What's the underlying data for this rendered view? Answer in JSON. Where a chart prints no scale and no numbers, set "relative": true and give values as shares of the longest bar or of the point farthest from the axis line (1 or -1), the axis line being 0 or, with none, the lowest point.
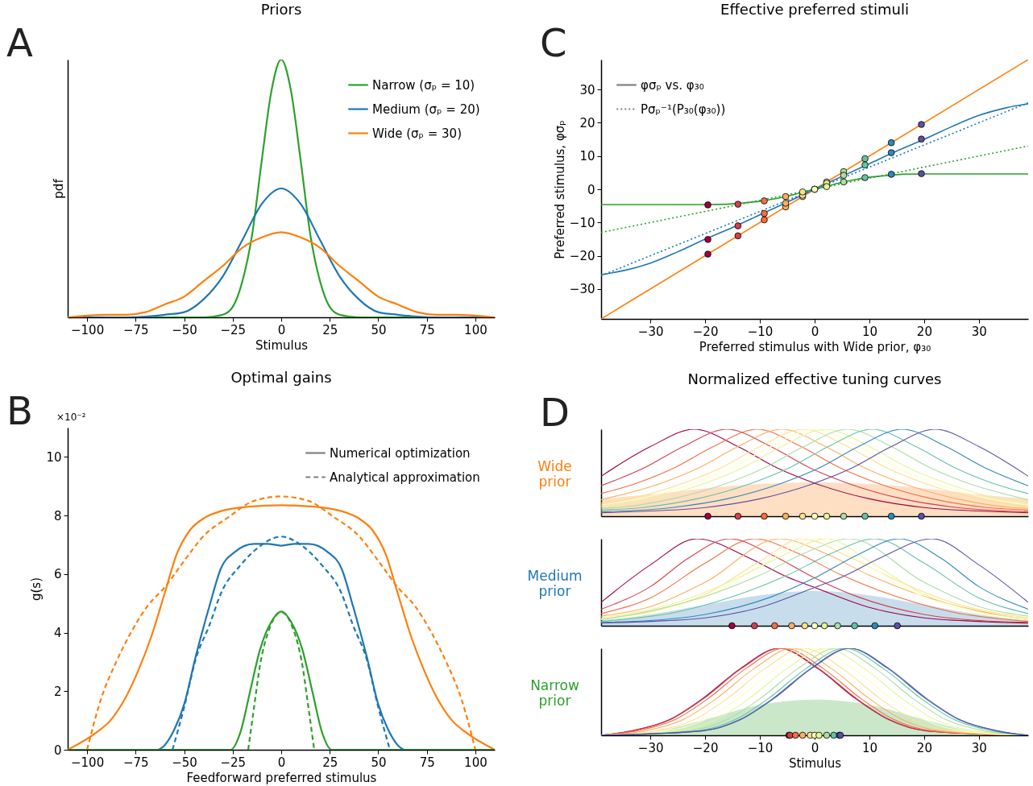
{
  "chart_data": [
    {
      "type": "line",
      "title": "Priors",
      "xlabel": "Stimulus",
      "ylabel": "pdf",
      "relative": true,
      "xlim": [
        -110,
        110
      ],
      "xticks": [
        -100,
        -75,
        -50,
        -25,
        0,
        25,
        50,
        75,
        100
      ],
      "legend": "top right",
      "grid": false,
      "annotations": [
        "A"
      ],
      "series": [
        {
          "name": "Narrow (σₚ = 10)",
          "color": "#2ca02c",
          "x": [
            -110,
            -40,
            -30,
            -25,
            -20,
            -15,
            -10,
            -5,
            0,
            5,
            10,
            15,
            20,
            25,
            30,
            40,
            110
          ],
          "values": [
            0,
            0,
            0.01,
            0.04,
            0.14,
            0.32,
            0.61,
            0.88,
            1,
            0.88,
            0.61,
            0.32,
            0.14,
            0.04,
            0.01,
            0,
            0
          ]
        },
        {
          "name": "Medium (σₚ = 20)",
          "color": "#1f77b4",
          "x": [
            -110,
            -80,
            -60,
            -50,
            -40,
            -30,
            -20,
            -10,
            0,
            10,
            20,
            30,
            40,
            50,
            60,
            80,
            110
          ],
          "values": [
            0,
            0,
            0.01,
            0.02,
            0.07,
            0.16,
            0.3,
            0.44,
            0.5,
            0.44,
            0.3,
            0.16,
            0.07,
            0.02,
            0.01,
            0,
            0
          ]
        },
        {
          "name": "Wide (σₚ = 30)",
          "color": "#ff7f0e",
          "x": [
            -110,
            -90,
            -80,
            -70,
            -60,
            -50,
            -40,
            -30,
            -20,
            -10,
            0,
            10,
            20,
            30,
            40,
            50,
            60,
            70,
            80,
            90,
            110
          ],
          "values": [
            0,
            0.01,
            0.01,
            0.02,
            0.05,
            0.08,
            0.14,
            0.2,
            0.27,
            0.31,
            0.33,
            0.31,
            0.27,
            0.2,
            0.14,
            0.08,
            0.05,
            0.02,
            0.01,
            0.01,
            0
          ]
        }
      ]
    },
    {
      "type": "line",
      "title": "Optimal gains",
      "xlabel": "Feedforward preferred stimulus",
      "ylabel": "g(s)",
      "xlim": [
        -110,
        110
      ],
      "xticks": [
        -100,
        -75,
        -50,
        -25,
        0,
        25,
        50,
        75,
        100
      ],
      "ylim": [
        0,
        11
      ],
      "yticks": [
        0,
        2,
        4,
        6,
        8,
        10
      ],
      "legend": "top right",
      "grid": false,
      "annotations": [
        "B",
        "×10⁻²",
        "Numerical optimization",
        "Analytical approximation"
      ],
      "series": [
        {
          "color": "#ff7f0e",
          "line_style": "solid",
          "x": [
            -110,
            -95,
            -88,
            -80,
            -74,
            -67,
            -60,
            -54,
            -47,
            -40,
            -31,
            -17,
            0,
            17,
            31,
            40,
            47,
            54,
            60,
            67,
            74,
            80,
            88,
            95,
            110
          ],
          "values": [
            0,
            0.6,
            1,
            1.8,
            2.65,
            3.85,
            5.35,
            6.65,
            7.5,
            7.9,
            8.15,
            8.3,
            8.35,
            8.3,
            8.15,
            7.9,
            7.5,
            6.65,
            5.35,
            3.85,
            2.65,
            1.8,
            1,
            0.6,
            0
          ]
        },
        {
          "color": "#ff7f0e",
          "line_style": "dashed",
          "x": [
            -100,
            -93,
            -85,
            -77,
            -69,
            -60,
            -50,
            -40,
            -27,
            -14,
            0,
            14,
            27,
            40,
            50,
            60,
            69,
            77,
            85,
            93,
            100
          ],
          "values": [
            0,
            1.7,
            3,
            4.05,
            4.9,
            5.55,
            6.45,
            7.3,
            7.95,
            8.5,
            8.65,
            8.5,
            7.95,
            7.3,
            6.45,
            5.55,
            4.9,
            4.05,
            3,
            1.7,
            0
          ]
        },
        {
          "color": "#1f77b4",
          "line_style": "solid",
          "x": [
            -110,
            -64,
            -60,
            -55,
            -50,
            -44,
            -37,
            -31,
            -24,
            -14,
            -7,
            0,
            7,
            14,
            24,
            31,
            37,
            44,
            50,
            55,
            60,
            64,
            110
          ],
          "values": [
            0,
            0,
            0.16,
            0.7,
            1.55,
            3.2,
            4.9,
            6.2,
            6.75,
            7.03,
            7.03,
            6.97,
            7.03,
            7.03,
            6.75,
            6.2,
            4.9,
            3.2,
            1.55,
            0.7,
            0.16,
            0,
            0
          ]
        },
        {
          "color": "#1f77b4",
          "line_style": "dashed",
          "x": [
            -56,
            -50,
            -44,
            -37,
            -31,
            -21,
            -11,
            0,
            11,
            21,
            31,
            37,
            44,
            50,
            56
          ],
          "values": [
            0,
            1.45,
            3.1,
            4.25,
            5.35,
            6.3,
            6.95,
            7.28,
            6.95,
            6.3,
            5.35,
            4.25,
            3.1,
            1.45,
            0
          ]
        },
        {
          "color": "#2ca02c",
          "line_style": "solid",
          "x": [
            -110,
            -26,
            -21,
            -16,
            -11,
            -5,
            0,
            5,
            11,
            16,
            21,
            26,
            110
          ],
          "values": [
            0,
            0,
            0.6,
            2,
            3.4,
            4.38,
            4.72,
            4.38,
            3.4,
            2,
            0.6,
            0,
            0
          ]
        },
        {
          "color": "#2ca02c",
          "line_style": "dashed",
          "x": [
            -17,
            -14,
            -11,
            -6,
            0,
            6,
            11,
            14,
            17
          ],
          "values": [
            0,
            1.45,
            2.85,
            4.15,
            4.7,
            4.15,
            2.85,
            1.45,
            0
          ]
        }
      ]
    },
    {
      "type": "line",
      "title": "Effective preferred stimuli",
      "xlabel": "Preferred stimulus with Wide prior, φ₃₀",
      "ylabel": "Preferred stimulus, φσₚ",
      "xlim": [
        -39,
        39
      ],
      "xticks": [
        -30,
        -20,
        -10,
        0,
        10,
        20,
        30
      ],
      "ylim": [
        -39,
        39
      ],
      "yticks": [
        -30,
        -20,
        -10,
        0,
        10,
        20,
        30
      ],
      "legend": "top left",
      "grid": false,
      "annotations": [
        "C",
        "φσₚ vs. φ₃₀",
        "Pσₚ⁻¹(P₃₀(φ₃₀))"
      ],
      "series": [
        {
          "color": "#ff7f0e",
          "line_style": "solid",
          "x": [
            -39,
            39
          ],
          "values": [
            -39,
            39
          ]
        },
        {
          "color": "#1f77b4",
          "line_style": "solid",
          "x": [
            -39,
            -35,
            -30,
            -25,
            -20,
            -15,
            -10,
            -5,
            0,
            5,
            10,
            15,
            20,
            25,
            30,
            35,
            39
          ],
          "values": [
            -25.7,
            -24.5,
            -22.2,
            -18.8,
            -15,
            -11.5,
            -7.7,
            -3.9,
            0,
            3.9,
            7.7,
            11.5,
            15,
            18.8,
            22.2,
            24.5,
            25.7
          ]
        },
        {
          "color": "#2ca02c",
          "line_style": "solid",
          "x": [
            -39,
            -20,
            -16,
            -13,
            -10,
            -7,
            -4,
            -2,
            0,
            2,
            4,
            7,
            10,
            13,
            16,
            20,
            39
          ],
          "values": [
            -4.6,
            -4.6,
            -4.5,
            -4.1,
            -3.6,
            -2.8,
            -1.7,
            -0.8,
            0,
            0.8,
            1.7,
            2.8,
            3.6,
            4.1,
            4.5,
            4.6,
            4.6
          ]
        },
        {
          "color": "#1f77b4",
          "line_style": "dotted",
          "x": [
            -39,
            39
          ],
          "values": [
            -26,
            26
          ]
        },
        {
          "color": "#2ca02c",
          "line_style": "dotted",
          "x": [
            -39,
            39
          ],
          "values": [
            -13,
            13
          ]
        },
        {
          "type": "scatter",
          "marker": "circle",
          "x": [
            -19.5,
            -14,
            -9.2,
            -5.3,
            -2.2,
            0,
            2.2,
            5.3,
            9.2,
            14,
            19.5
          ],
          "values": [
            -19.5,
            -14,
            -9.2,
            -5.3,
            -2.2,
            0,
            2.2,
            5.3,
            9.2,
            14,
            19.5
          ],
          "colors": [
            "#9e0142",
            "#d53e4f",
            "#f46d43",
            "#fdae61",
            "#fee08b",
            "#ffffbf",
            "#e6f598",
            "#abdda4",
            "#66c2a5",
            "#3288bd",
            "#5e4fa2"
          ]
        },
        {
          "type": "scatter",
          "marker": "circle",
          "x": [
            -19.5,
            -14,
            -9.2,
            -5.3,
            -2.2,
            0,
            2.2,
            5.3,
            9.2,
            14,
            19.5
          ],
          "values": [
            -15.1,
            -11,
            -7.3,
            -4.2,
            -1.8,
            0,
            1.8,
            4.2,
            7.3,
            11,
            15.1
          ],
          "colors": [
            "#9e0142",
            "#d53e4f",
            "#f46d43",
            "#fdae61",
            "#fee08b",
            "#ffffbf",
            "#e6f598",
            "#abdda4",
            "#66c2a5",
            "#3288bd",
            "#5e4fa2"
          ]
        },
        {
          "type": "scatter",
          "marker": "circle",
          "x": [
            -19.5,
            -14,
            -9.2,
            -5.3,
            -2.2,
            0,
            2.2,
            5.3,
            9.2,
            14,
            19.5
          ],
          "values": [
            -4.7,
            -4.5,
            -3.5,
            -2.2,
            -0.8,
            0,
            0.8,
            2.2,
            3.5,
            4.5,
            4.7
          ],
          "colors": [
            "#9e0142",
            "#d53e4f",
            "#f46d43",
            "#fdae61",
            "#fee08b",
            "#ffffbf",
            "#e6f598",
            "#abdda4",
            "#66c2a5",
            "#3288bd",
            "#5e4fa2"
          ]
        }
      ]
    },
    {
      "type": "line",
      "title": "Normalized effective tuning curves",
      "ylabel": "Wide prior",
      "relative": true,
      "xlim": [
        -39,
        39
      ],
      "xticks": [
        -30,
        -20,
        -10,
        0,
        10,
        20,
        30
      ],
      "tick_labels": false,
      "grid": false,
      "annotations": [
        "D"
      ],
      "series": [
        {
          "type": "area",
          "color": "#ff7f0e",
          "x": [
            -39,
            -30,
            -20,
            -10,
            0,
            10,
            20,
            30,
            39
          ],
          "values": [
            0.2,
            0.25,
            0.32,
            0.37,
            0.39,
            0.37,
            0.32,
            0.25,
            0.2
          ]
        },
        {
          "color": "#9e0142",
          "x": [
            -39,
            -30,
            -22,
            -14,
            -7,
            0,
            10,
            20,
            30,
            39
          ],
          "values": [
            0.46,
            0.8,
            1,
            0.8,
            0.56,
            0.38,
            0.2,
            0.1,
            0.06,
            0.04
          ]
        },
        {
          "color": "#d53e4f",
          "x": [
            -39,
            -31,
            -24,
            -16,
            -8,
            -1,
            6,
            16,
            26,
            39
          ],
          "values": [
            0.35,
            0.56,
            0.8,
            1,
            0.8,
            0.56,
            0.38,
            0.2,
            0.1,
            0.05
          ]
        },
        {
          "color": "#f46d43",
          "x": [
            -39,
            -32.5,
            -25.5,
            -18.5,
            -10.5,
            -2.5,
            4.5,
            11.5,
            21.5,
            31.5,
            39
          ],
          "values": [
            0.26,
            0.38,
            0.56,
            0.8,
            1,
            0.8,
            0.56,
            0.38,
            0.2,
            0.1,
            0.07
          ]
        },
        {
          "color": "#fdae61",
          "x": [
            -39,
            -28,
            -21,
            -14,
            -6,
            2,
            9,
            16,
            26,
            36,
            39
          ],
          "values": [
            0.19,
            0.38,
            0.56,
            0.8,
            1,
            0.8,
            0.56,
            0.38,
            0.2,
            0.1,
            0.09
          ]
        },
        {
          "color": "#fee08b",
          "x": [
            -39,
            -34,
            -24,
            -17,
            -10,
            -2,
            6,
            13,
            20,
            30,
            39
          ],
          "values": [
            0.15,
            0.2,
            0.38,
            0.56,
            0.8,
            1,
            0.8,
            0.56,
            0.38,
            0.2,
            0.11
          ]
        },
        {
          "color": "#ffffbf",
          "x": [
            -39,
            -32,
            -22,
            -15,
            -8,
            0,
            8,
            15,
            22,
            32,
            39
          ],
          "values": [
            0.13,
            0.2,
            0.38,
            0.56,
            0.8,
            1,
            0.8,
            0.56,
            0.38,
            0.2,
            0.13
          ]
        },
        {
          "color": "#e6f598",
          "x": [
            -39,
            -30,
            -20,
            -13,
            -6,
            2,
            10,
            17,
            24,
            34,
            39
          ],
          "values": [
            0.11,
            0.2,
            0.38,
            0.56,
            0.8,
            1,
            0.8,
            0.56,
            0.38,
            0.2,
            0.15
          ]
        },
        {
          "color": "#abdda4",
          "x": [
            -39,
            -36,
            -26,
            -16,
            -9,
            -2,
            6,
            14,
            21,
            28,
            39
          ],
          "values": [
            0.09,
            0.1,
            0.2,
            0.38,
            0.56,
            0.8,
            1,
            0.8,
            0.56,
            0.38,
            0.19
          ]
        },
        {
          "color": "#66c2a5",
          "x": [
            -39,
            -31.5,
            -21.5,
            -11.5,
            -4.5,
            2.5,
            10.5,
            18.5,
            25.5,
            32.5,
            39
          ],
          "values": [
            0.07,
            0.1,
            0.2,
            0.38,
            0.56,
            0.8,
            1,
            0.8,
            0.56,
            0.38,
            0.26
          ]
        },
        {
          "color": "#3288bd",
          "x": [
            -39,
            -26,
            -16,
            -6,
            1,
            8,
            16,
            24,
            31,
            39
          ],
          "values": [
            0.05,
            0.1,
            0.2,
            0.38,
            0.56,
            0.8,
            1,
            0.8,
            0.56,
            0.35
          ]
        },
        {
          "color": "#5e4fa2",
          "x": [
            -39,
            -30,
            -20,
            -10,
            0,
            7,
            14,
            22,
            30,
            39
          ],
          "values": [
            0.04,
            0.06,
            0.1,
            0.2,
            0.38,
            0.56,
            0.8,
            1,
            0.8,
            0.46
          ]
        },
        {
          "type": "scatter",
          "marker": "circle",
          "x": [
            -19.5,
            -14,
            -9.2,
            -5.3,
            -2.2,
            0,
            2.2,
            5.3,
            9.2,
            14,
            19.5
          ],
          "values": [
            0,
            0,
            0,
            0,
            0,
            0,
            0,
            0,
            0,
            0,
            0
          ],
          "colors": [
            "#9e0142",
            "#d53e4f",
            "#f46d43",
            "#fdae61",
            "#fee08b",
            "#ffffbf",
            "#e6f598",
            "#abdda4",
            "#66c2a5",
            "#3288bd",
            "#5e4fa2"
          ]
        }
      ]
    },
    {
      "type": "line",
      "ylabel": "Medium prior",
      "relative": true,
      "xlim": [
        -39,
        39
      ],
      "xticks": [
        -30,
        -20,
        -10,
        0,
        10,
        20,
        30
      ],
      "tick_labels": false,
      "grid": false,
      "series": [
        {
          "type": "area",
          "color": "#1f77b4",
          "x": [
            -39,
            -30,
            -20,
            -10,
            0,
            10,
            20,
            30,
            39
          ],
          "values": [
            0.06,
            0.13,
            0.24,
            0.35,
            0.4,
            0.35,
            0.24,
            0.13,
            0.06
          ]
        },
        {
          "color": "#9e0142",
          "x": [
            -39,
            -30,
            -21.5,
            -12,
            -5,
            0,
            10,
            20,
            30,
            39
          ],
          "values": [
            0.27,
            0.7,
            1,
            0.78,
            0.56,
            0.44,
            0.21,
            0.09,
            0.05,
            0.03
          ]
        },
        {
          "color": "#d53e4f",
          "x": [
            -39,
            -30,
            -23,
            -15.5,
            -8,
            0,
            8,
            20,
            30,
            39
          ],
          "values": [
            0.19,
            0.45,
            0.78,
            1,
            0.82,
            0.55,
            0.33,
            0.13,
            0.06,
            0.04
          ]
        },
        {
          "color": "#f46d43",
          "x": [
            -39,
            -30,
            -20,
            -11,
            -3,
            5,
            12,
            25,
            39
          ],
          "values": [
            0.14,
            0.32,
            0.72,
            1,
            0.83,
            0.58,
            0.4,
            0.16,
            0.05
          ]
        },
        {
          "color": "#fdae61",
          "x": [
            -39,
            -30,
            -20,
            -6.4,
            2,
            10,
            18,
            30,
            39
          ],
          "values": [
            0.11,
            0.22,
            0.5,
            1,
            0.83,
            0.58,
            0.38,
            0.17,
            0.07
          ]
        },
        {
          "color": "#fee08b",
          "x": [
            -39,
            -30,
            -20,
            -10,
            -2.3,
            6,
            14,
            25,
            39
          ],
          "values": [
            0.08,
            0.16,
            0.36,
            0.74,
            1,
            0.8,
            0.55,
            0.27,
            0.09
          ]
        },
        {
          "color": "#ffffbf",
          "x": [
            -39,
            -30,
            -20,
            -10,
            0,
            10,
            20,
            30,
            39
          ],
          "values": [
            0.07,
            0.14,
            0.33,
            0.68,
            1,
            0.68,
            0.33,
            0.14,
            0.07
          ]
        },
        {
          "color": "#e6f598",
          "x": [
            -39,
            -25,
            -14,
            -6,
            2.3,
            10,
            20,
            30,
            39
          ],
          "values": [
            0.09,
            0.27,
            0.55,
            0.8,
            1,
            0.74,
            0.36,
            0.16,
            0.08
          ]
        },
        {
          "color": "#abdda4",
          "x": [
            -39,
            -30,
            -18,
            -10,
            -2,
            6.4,
            20,
            30,
            39
          ],
          "values": [
            0.07,
            0.17,
            0.38,
            0.58,
            0.83,
            1,
            0.5,
            0.22,
            0.11
          ]
        },
        {
          "color": "#66c2a5",
          "x": [
            -39,
            -25,
            -12,
            -5,
            3,
            11,
            20,
            30,
            39
          ],
          "values": [
            0.05,
            0.16,
            0.4,
            0.58,
            0.83,
            1,
            0.72,
            0.32,
            0.14
          ]
        },
        {
          "color": "#3288bd",
          "x": [
            -39,
            -30,
            -20,
            -8,
            0,
            8,
            15.5,
            23,
            30,
            39
          ],
          "values": [
            0.04,
            0.06,
            0.13,
            0.33,
            0.55,
            0.82,
            1,
            0.78,
            0.45,
            0.19
          ]
        },
        {
          "color": "#5e4fa2",
          "x": [
            -39,
            -30,
            -20,
            -10,
            0,
            5,
            12,
            21.5,
            30,
            39
          ],
          "values": [
            0.03,
            0.05,
            0.09,
            0.21,
            0.44,
            0.56,
            0.78,
            1,
            0.7,
            0.27
          ]
        },
        {
          "type": "scatter",
          "marker": "circle",
          "x": [
            -15.1,
            -11,
            -7.3,
            -4.2,
            -1.8,
            0,
            1.8,
            4.2,
            7.3,
            11,
            15.1
          ],
          "values": [
            0,
            0,
            0,
            0,
            0,
            0,
            0,
            0,
            0,
            0,
            0
          ],
          "colors": [
            "#9e0142",
            "#d53e4f",
            "#f46d43",
            "#fdae61",
            "#fee08b",
            "#ffffbf",
            "#e6f598",
            "#abdda4",
            "#66c2a5",
            "#3288bd",
            "#5e4fa2"
          ]
        }
      ]
    },
    {
      "type": "line",
      "ylabel": "Narrow prior",
      "xlabel": "Stimulus",
      "relative": true,
      "xlim": [
        -39,
        39
      ],
      "xticks": [
        -30,
        -20,
        -10,
        0,
        10,
        20,
        30
      ],
      "tick_labels": "x",
      "grid": false,
      "series": [
        {
          "type": "area",
          "color": "#2ca02c",
          "x": [
            -39,
            -30,
            -20,
            -10,
            0,
            10,
            20,
            30,
            39
          ],
          "values": [
            0,
            0.03,
            0.18,
            0.35,
            0.41,
            0.35,
            0.18,
            0.03,
            0
          ]
        },
        {
          "color": "#9e0142",
          "x": [
            -39,
            -33.5,
            -26.5,
            -20.5,
            -13.5,
            -6.5,
            0.5,
            7.5,
            13.5,
            20.5,
            39
          ],
          "values": [
            0,
            0.05,
            0.18,
            0.42,
            0.77,
            1,
            0.77,
            0.42,
            0.18,
            0.05,
            0
          ]
        },
        {
          "color": "#d53e4f",
          "x": [
            -39,
            -33.3,
            -26.3,
            -20.3,
            -13.3,
            -6.3,
            0.7,
            7.7,
            13.7,
            20.7,
            39
          ],
          "values": [
            0,
            0.05,
            0.18,
            0.42,
            0.77,
            1,
            0.77,
            0.42,
            0.18,
            0.05,
            0
          ]
        },
        {
          "color": "#f46d43",
          "x": [
            -39,
            -32.5,
            -25.5,
            -19.5,
            -12.5,
            -5.5,
            1.5,
            8.5,
            14.5,
            21.5,
            39
          ],
          "values": [
            0,
            0.05,
            0.18,
            0.42,
            0.77,
            1,
            0.77,
            0.42,
            0.18,
            0.05,
            0
          ]
        },
        {
          "color": "#fdae61",
          "x": [
            -39,
            -31,
            -24,
            -18,
            -11,
            -4,
            3,
            10,
            16,
            23,
            39
          ],
          "values": [
            0,
            0.05,
            0.18,
            0.42,
            0.77,
            1,
            0.77,
            0.42,
            0.18,
            0.05,
            0
          ]
        },
        {
          "color": "#fee08b",
          "x": [
            -39,
            -29,
            -22,
            -16,
            -9,
            -2,
            5,
            12,
            18,
            25,
            39
          ],
          "values": [
            0,
            0.05,
            0.18,
            0.42,
            0.77,
            1,
            0.77,
            0.42,
            0.18,
            0.05,
            0
          ]
        },
        {
          "color": "#ffffbf",
          "x": [
            -39,
            -27,
            -20,
            -14,
            -7,
            0,
            7,
            14,
            20,
            27,
            39
          ],
          "values": [
            0,
            0.05,
            0.18,
            0.42,
            0.77,
            1,
            0.77,
            0.42,
            0.18,
            0.05,
            0
          ]
        },
        {
          "color": "#e6f598",
          "x": [
            -39,
            -25,
            -18,
            -12,
            -5,
            2,
            9,
            16,
            22,
            29,
            39
          ],
          "values": [
            0,
            0.05,
            0.18,
            0.42,
            0.77,
            1,
            0.77,
            0.42,
            0.18,
            0.05,
            0
          ]
        },
        {
          "color": "#abdda4",
          "x": [
            -39,
            -23,
            -16,
            -10,
            -3,
            4,
            11,
            18,
            24,
            31,
            39
          ],
          "values": [
            0,
            0.05,
            0.18,
            0.42,
            0.77,
            1,
            0.77,
            0.42,
            0.18,
            0.05,
            0
          ]
        },
        {
          "color": "#66c2a5",
          "x": [
            -39,
            -21.5,
            -14.5,
            -8.5,
            -1.5,
            5.5,
            12.5,
            19.5,
            25.5,
            32.5,
            39
          ],
          "values": [
            0,
            0.05,
            0.18,
            0.42,
            0.77,
            1,
            0.77,
            0.42,
            0.18,
            0.05,
            0
          ]
        },
        {
          "color": "#3288bd",
          "x": [
            -39,
            -20.7,
            -13.7,
            -7.7,
            -0.7,
            6.3,
            13.3,
            20.3,
            26.3,
            33.3,
            39
          ],
          "values": [
            0,
            0.05,
            0.18,
            0.42,
            0.77,
            1,
            0.77,
            0.42,
            0.18,
            0.05,
            0
          ]
        },
        {
          "color": "#5e4fa2",
          "x": [
            -39,
            -20.5,
            -13.5,
            -7.5,
            -0.5,
            6.5,
            13.5,
            20.5,
            26.5,
            33.5,
            39
          ],
          "values": [
            0,
            0.05,
            0.18,
            0.42,
            0.77,
            1,
            0.77,
            0.42,
            0.18,
            0.05,
            0
          ]
        },
        {
          "type": "scatter",
          "marker": "circle",
          "x": [
            -4.7,
            -4.5,
            -3.5,
            -2.2,
            -0.8,
            0,
            0.8,
            2.2,
            3.5,
            4.5,
            4.7
          ],
          "values": [
            0,
            0,
            0,
            0,
            0,
            0,
            0,
            0,
            0,
            0,
            0
          ],
          "colors": [
            "#9e0142",
            "#d53e4f",
            "#f46d43",
            "#fdae61",
            "#fee08b",
            "#ffffbf",
            "#e6f598",
            "#abdda4",
            "#66c2a5",
            "#3288bd",
            "#5e4fa2"
          ]
        }
      ]
    }
  ]
}
